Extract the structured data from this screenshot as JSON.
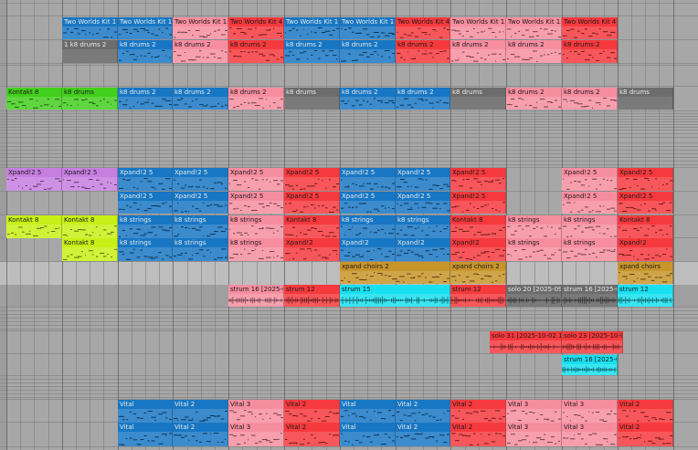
{
  "colors": {
    "blue": "#1877c4",
    "salmon": "#f78ea0",
    "red": "#f6393d",
    "gray": "#6c6c6c",
    "green": "#43cf1d",
    "lime": "#c8f016",
    "purple": "#c67ee0",
    "gold": "#c8952a",
    "cyan": "#17e0f0"
  },
  "clips": [
    {
      "label": "Two Worlds Kit 17",
      "color": "blue",
      "track": "drums-a",
      "lane": 0,
      "start": 1,
      "end": 2,
      "body": "midi"
    },
    {
      "label": "Two Worlds Kit 17",
      "color": "blue",
      "track": "drums-a",
      "lane": 0,
      "start": 2,
      "end": 3,
      "body": "midi"
    },
    {
      "label": "Two Worlds Kit 15",
      "color": "salmon",
      "track": "drums-a",
      "lane": 0,
      "start": 3,
      "end": 4,
      "body": "midi"
    },
    {
      "label": "Two Worlds Kit 4",
      "color": "red",
      "track": "drums-a",
      "lane": 0,
      "start": 4,
      "end": 5,
      "body": "midi"
    },
    {
      "label": "Two Worlds Kit 17",
      "color": "blue",
      "track": "drums-a",
      "lane": 0,
      "start": 5,
      "end": 6,
      "body": "midi"
    },
    {
      "label": "Two Worlds Kit 17",
      "color": "blue",
      "track": "drums-a",
      "lane": 0,
      "start": 6,
      "end": 7,
      "body": "midi"
    },
    {
      "label": "Two Worlds Kit 4",
      "color": "red",
      "track": "drums-a",
      "lane": 0,
      "start": 7,
      "end": 8,
      "body": "midi"
    },
    {
      "label": "Two Worlds Kit 15",
      "color": "salmon",
      "track": "drums-a",
      "lane": 0,
      "start": 8,
      "end": 9,
      "body": "midi"
    },
    {
      "label": "Two Worlds Kit 15",
      "color": "salmon",
      "track": "drums-a",
      "lane": 0,
      "start": 9,
      "end": 10,
      "body": "midi"
    },
    {
      "label": "Two Worlds Kit 4",
      "color": "red",
      "track": "drums-a",
      "lane": 0,
      "start": 10,
      "end": 11,
      "body": "midi"
    },
    {
      "label": "1 k8 drums 2",
      "color": "gray",
      "track": "drums-b",
      "lane": 1,
      "start": 1,
      "end": 2,
      "body": "none"
    },
    {
      "label": "k8 drums 2",
      "color": "blue",
      "track": "drums-b",
      "lane": 1,
      "start": 2,
      "end": 3,
      "body": "midi"
    },
    {
      "label": "k8 drums 2",
      "color": "salmon",
      "track": "drums-b",
      "lane": 1,
      "start": 3,
      "end": 4,
      "body": "midi"
    },
    {
      "label": "k8 drums 2",
      "color": "red",
      "track": "drums-b",
      "lane": 1,
      "start": 4,
      "end": 5,
      "body": "midi"
    },
    {
      "label": "k8 drums 2",
      "color": "blue",
      "track": "drums-b",
      "lane": 1,
      "start": 5,
      "end": 6,
      "body": "midi"
    },
    {
      "label": "k8 drums 2",
      "color": "blue",
      "track": "drums-b",
      "lane": 1,
      "start": 6,
      "end": 7,
      "body": "midi"
    },
    {
      "label": "k8 drums 2",
      "color": "red",
      "track": "drums-b",
      "lane": 1,
      "start": 7,
      "end": 8,
      "body": "midi"
    },
    {
      "label": "k8 drums 2",
      "color": "salmon",
      "track": "drums-b",
      "lane": 1,
      "start": 8,
      "end": 9,
      "body": "midi"
    },
    {
      "label": "k8 drums 2",
      "color": "salmon",
      "track": "drums-b",
      "lane": 1,
      "start": 9,
      "end": 10,
      "body": "midi"
    },
    {
      "label": "k8 drums 2",
      "color": "red",
      "track": "drums-b",
      "lane": 1,
      "start": 10,
      "end": 11,
      "body": "midi"
    },
    {
      "label": "Kontakt 8",
      "color": "green",
      "track": "perc",
      "lane": 2,
      "start": 0,
      "end": 1,
      "body": "midi"
    },
    {
      "label": "k8 drums",
      "color": "green",
      "track": "perc",
      "lane": 2,
      "start": 1,
      "end": 2,
      "body": "midi"
    },
    {
      "label": "k8 drums 2",
      "color": "blue",
      "track": "perc",
      "lane": 2,
      "start": 2,
      "end": 3,
      "body": "midi"
    },
    {
      "label": "k8 drums 2",
      "color": "blue",
      "track": "perc",
      "lane": 2,
      "start": 3,
      "end": 4,
      "body": "midi"
    },
    {
      "label": "k8 drums 2",
      "color": "salmon",
      "track": "perc",
      "lane": 2,
      "start": 4,
      "end": 5,
      "body": "midi"
    },
    {
      "label": "k8 drums",
      "color": "gray",
      "track": "perc",
      "lane": 2,
      "start": 5,
      "end": 6,
      "body": "none"
    },
    {
      "label": "k8 drums 2",
      "color": "blue",
      "track": "perc",
      "lane": 2,
      "start": 6,
      "end": 7,
      "body": "midi"
    },
    {
      "label": "k8 drums 2",
      "color": "blue",
      "track": "perc",
      "lane": 2,
      "start": 7,
      "end": 8,
      "body": "midi"
    },
    {
      "label": "k8 drums",
      "color": "gray",
      "track": "perc",
      "lane": 2,
      "start": 8,
      "end": 9,
      "body": "none"
    },
    {
      "label": "k8 drums 2",
      "color": "salmon",
      "track": "perc",
      "lane": 2,
      "start": 9,
      "end": 10,
      "body": "midi"
    },
    {
      "label": "k8 drums 2",
      "color": "salmon",
      "track": "perc",
      "lane": 2,
      "start": 10,
      "end": 11,
      "body": "midi"
    },
    {
      "label": "k8 drums",
      "color": "gray",
      "track": "perc",
      "lane": 2,
      "start": 11,
      "end": 12,
      "body": "none"
    },
    {
      "label": "Xpand!2 5",
      "color": "purple",
      "track": "xpand-a",
      "lane": 3,
      "start": 0,
      "end": 1,
      "body": "midi"
    },
    {
      "label": "Xpand!2 5",
      "color": "purple",
      "track": "xpand-a",
      "lane": 3,
      "start": 1,
      "end": 2,
      "body": "midi"
    },
    {
      "label": "Xpand!2 5",
      "color": "blue",
      "track": "xpand-a",
      "lane": 3,
      "start": 2,
      "end": 3,
      "body": "midi"
    },
    {
      "label": "Xpand!2 5",
      "color": "blue",
      "track": "xpand-a",
      "lane": 3,
      "start": 3,
      "end": 4,
      "body": "midi"
    },
    {
      "label": "Xpand!2 5",
      "color": "salmon",
      "track": "xpand-a",
      "lane": 3,
      "start": 4,
      "end": 5,
      "body": "midi"
    },
    {
      "label": "Xpand!2 5",
      "color": "red",
      "track": "xpand-a",
      "lane": 3,
      "start": 5,
      "end": 6,
      "body": "midi"
    },
    {
      "label": "Xpand!2 5",
      "color": "blue",
      "track": "xpand-a",
      "lane": 3,
      "start": 6,
      "end": 7,
      "body": "midi"
    },
    {
      "label": "Xpand!2 5",
      "color": "blue",
      "track": "xpand-a",
      "lane": 3,
      "start": 7,
      "end": 8,
      "body": "midi"
    },
    {
      "label": "Xpand!2 5",
      "color": "red",
      "track": "xpand-a",
      "lane": 3,
      "start": 8,
      "end": 9,
      "body": "midi"
    },
    {
      "label": "Xpand!2 5",
      "color": "salmon",
      "track": "xpand-a",
      "lane": 3,
      "start": 10,
      "end": 11,
      "body": "midi"
    },
    {
      "label": "Xpand!2 5",
      "color": "red",
      "track": "xpand-a",
      "lane": 3,
      "start": 11,
      "end": 12,
      "body": "midi"
    },
    {
      "label": "Xpand!2 5",
      "color": "blue",
      "track": "xpand-b",
      "lane": 4,
      "start": 2,
      "end": 3,
      "body": "midi"
    },
    {
      "label": "Xpand!2 5",
      "color": "blue",
      "track": "xpand-b",
      "lane": 4,
      "start": 3,
      "end": 4,
      "body": "midi"
    },
    {
      "label": "Xpand!2 5",
      "color": "salmon",
      "track": "xpand-b",
      "lane": 4,
      "start": 4,
      "end": 5,
      "body": "midi"
    },
    {
      "label": "Xpand!2 5",
      "color": "red",
      "track": "xpand-b",
      "lane": 4,
      "start": 5,
      "end": 6,
      "body": "midi"
    },
    {
      "label": "Xpand!2 5",
      "color": "blue",
      "track": "xpand-b",
      "lane": 4,
      "start": 6,
      "end": 7,
      "body": "midi"
    },
    {
      "label": "Xpand!2 5",
      "color": "blue",
      "track": "xpand-b",
      "lane": 4,
      "start": 7,
      "end": 8,
      "body": "midi"
    },
    {
      "label": "Xpand!2 5",
      "color": "red",
      "track": "xpand-b",
      "lane": 4,
      "start": 8,
      "end": 9,
      "body": "midi"
    },
    {
      "label": "Xpand!2 5",
      "color": "salmon",
      "track": "xpand-b",
      "lane": 4,
      "start": 10,
      "end": 11,
      "body": "midi"
    },
    {
      "label": "Xpand!2 5",
      "color": "red",
      "track": "xpand-b",
      "lane": 4,
      "start": 11,
      "end": 12,
      "body": "midi"
    },
    {
      "label": "Kontakt 8",
      "color": "lime",
      "track": "strings-a",
      "lane": 5,
      "start": 0,
      "end": 1,
      "body": "midi"
    },
    {
      "label": "Kontakt 8",
      "color": "lime",
      "track": "strings-a",
      "lane": 5,
      "start": 1,
      "end": 2,
      "body": "midi"
    },
    {
      "label": "k8 strings",
      "color": "blue",
      "track": "strings-a",
      "lane": 5,
      "start": 2,
      "end": 3,
      "body": "midi"
    },
    {
      "label": "k8 strings",
      "color": "blue",
      "track": "strings-a",
      "lane": 5,
      "start": 3,
      "end": 4,
      "body": "midi"
    },
    {
      "label": "k8 strings",
      "color": "salmon",
      "track": "strings-a",
      "lane": 5,
      "start": 4,
      "end": 5,
      "body": "midi"
    },
    {
      "label": "Kontakt 8",
      "color": "red",
      "track": "strings-a",
      "lane": 5,
      "start": 5,
      "end": 6,
      "body": "midi"
    },
    {
      "label": "k8 strings",
      "color": "blue",
      "track": "strings-a",
      "lane": 5,
      "start": 6,
      "end": 7,
      "body": "midi"
    },
    {
      "label": "k8 strings",
      "color": "blue",
      "track": "strings-a",
      "lane": 5,
      "start": 7,
      "end": 8,
      "body": "midi"
    },
    {
      "label": "Kontakt 8",
      "color": "red",
      "track": "strings-a",
      "lane": 5,
      "start": 8,
      "end": 9,
      "body": "midi"
    },
    {
      "label": "k8 strings",
      "color": "salmon",
      "track": "strings-a",
      "lane": 5,
      "start": 9,
      "end": 10,
      "body": "midi"
    },
    {
      "label": "k8 strings",
      "color": "salmon",
      "track": "strings-a",
      "lane": 5,
      "start": 10,
      "end": 11,
      "body": "midi"
    },
    {
      "label": "Kontakt 8",
      "color": "red",
      "track": "strings-a",
      "lane": 5,
      "start": 11,
      "end": 12,
      "body": "midi"
    },
    {
      "label": "Kontakt 8",
      "color": "lime",
      "track": "strings-b",
      "lane": 6,
      "start": 1,
      "end": 2,
      "body": "midi"
    },
    {
      "label": "k8 strings",
      "color": "blue",
      "track": "strings-b",
      "lane": 6,
      "start": 2,
      "end": 3,
      "body": "midi"
    },
    {
      "label": "k8 strings",
      "color": "blue",
      "track": "strings-b",
      "lane": 6,
      "start": 3,
      "end": 4,
      "body": "midi"
    },
    {
      "label": "k8 strings",
      "color": "salmon",
      "track": "strings-b",
      "lane": 6,
      "start": 4,
      "end": 5,
      "body": "midi"
    },
    {
      "label": "Xpand!2",
      "color": "red",
      "track": "strings-b",
      "lane": 6,
      "start": 5,
      "end": 6,
      "body": "midi"
    },
    {
      "label": "Xpand!2",
      "color": "blue",
      "track": "strings-b",
      "lane": 6,
      "start": 6,
      "end": 7,
      "body": "midi"
    },
    {
      "label": "Xpand!2",
      "color": "blue",
      "track": "strings-b",
      "lane": 6,
      "start": 7,
      "end": 8,
      "body": "midi"
    },
    {
      "label": "Xpand!2",
      "color": "red",
      "track": "strings-b",
      "lane": 6,
      "start": 8,
      "end": 9,
      "body": "midi"
    },
    {
      "label": "k8 strings",
      "color": "salmon",
      "track": "strings-b",
      "lane": 6,
      "start": 9,
      "end": 10,
      "body": "midi"
    },
    {
      "label": "k8 strings",
      "color": "salmon",
      "track": "strings-b",
      "lane": 6,
      "start": 10,
      "end": 11,
      "body": "midi"
    },
    {
      "label": "Xpand!2",
      "color": "red",
      "track": "strings-b",
      "lane": 6,
      "start": 11,
      "end": 12,
      "body": "midi"
    },
    {
      "label": "xpand choirs 2",
      "color": "gold",
      "track": "choirs",
      "lane": 7,
      "start": 6,
      "end": 8,
      "body": "midi"
    },
    {
      "label": "xpand choirs 2",
      "color": "gold",
      "track": "choirs",
      "lane": 7,
      "start": 8,
      "end": 9,
      "body": "midi"
    },
    {
      "label": "xpand choirs",
      "color": "gold",
      "track": "choirs",
      "lane": 7,
      "start": 11,
      "end": 12,
      "body": "midi"
    },
    {
      "label": "strum 16 [2025-09-",
      "color": "salmon",
      "track": "strum",
      "lane": 8,
      "start": 4,
      "end": 5,
      "body": "audio"
    },
    {
      "label": "strum 12",
      "color": "red",
      "track": "strum",
      "lane": 8,
      "start": 5,
      "end": 6,
      "body": "audio"
    },
    {
      "label": "strum 15",
      "color": "cyan",
      "track": "strum",
      "lane": 8,
      "start": 6,
      "end": 8,
      "body": "audio"
    },
    {
      "label": "strum 12",
      "color": "red",
      "track": "strum",
      "lane": 8,
      "start": 8,
      "end": 9,
      "body": "audio"
    },
    {
      "label": "solo 20 [2025-09-",
      "color": "gray",
      "track": "strum",
      "lane": 8,
      "start": 9,
      "end": 10,
      "body": "audio"
    },
    {
      "label": "strum 16 [2025-0",
      "color": "gray",
      "track": "strum",
      "lane": 8,
      "start": 10,
      "end": 11,
      "body": "audio"
    },
    {
      "label": "strum 12",
      "color": "cyan",
      "track": "strum",
      "lane": 8,
      "start": 11,
      "end": 12,
      "body": "audio"
    },
    {
      "label": "solo 31 [2025-10-02 12",
      "color": "red",
      "track": "solo",
      "lane": 9,
      "start": 8.7,
      "end": 10,
      "body": "audio"
    },
    {
      "label": "solo 23 [2025-10-02",
      "color": "red",
      "track": "solo",
      "lane": 9,
      "start": 10,
      "end": 11.1,
      "body": "audio"
    },
    {
      "label": "strum 16 [2025-0",
      "color": "cyan",
      "track": "strum-b",
      "lane": 10,
      "start": 10,
      "end": 11,
      "body": "audio"
    },
    {
      "label": "Vital",
      "color": "blue",
      "track": "vital-a",
      "lane": 11,
      "start": 2,
      "end": 3,
      "body": "midi"
    },
    {
      "label": "Vital 2",
      "color": "blue",
      "track": "vital-a",
      "lane": 11,
      "start": 3,
      "end": 4,
      "body": "midi"
    },
    {
      "label": "Vital 3",
      "color": "salmon",
      "track": "vital-a",
      "lane": 11,
      "start": 4,
      "end": 5,
      "body": "midi"
    },
    {
      "label": "Vital 2",
      "color": "red",
      "track": "vital-a",
      "lane": 11,
      "start": 5,
      "end": 6,
      "body": "midi"
    },
    {
      "label": "Vital",
      "color": "blue",
      "track": "vital-a",
      "lane": 11,
      "start": 6,
      "end": 7,
      "body": "midi"
    },
    {
      "label": "Vital 2",
      "color": "blue",
      "track": "vital-a",
      "lane": 11,
      "start": 7,
      "end": 8,
      "body": "midi"
    },
    {
      "label": "Vital 2",
      "color": "red",
      "track": "vital-a",
      "lane": 11,
      "start": 8,
      "end": 9,
      "body": "midi"
    },
    {
      "label": "Vital 3",
      "color": "salmon",
      "track": "vital-a",
      "lane": 11,
      "start": 9,
      "end": 10,
      "body": "midi"
    },
    {
      "label": "Vital 3",
      "color": "salmon",
      "track": "vital-a",
      "lane": 11,
      "start": 10,
      "end": 11,
      "body": "midi"
    },
    {
      "label": "Vital 2",
      "color": "red",
      "track": "vital-a",
      "lane": 11,
      "start": 11,
      "end": 12,
      "body": "midi"
    },
    {
      "label": "Vital",
      "color": "blue",
      "track": "vital-b",
      "lane": 12,
      "start": 2,
      "end": 3,
      "body": "midi"
    },
    {
      "label": "Vital 2",
      "color": "blue",
      "track": "vital-b",
      "lane": 12,
      "start": 3,
      "end": 4,
      "body": "midi"
    },
    {
      "label": "Vital 3",
      "color": "salmon",
      "track": "vital-b",
      "lane": 12,
      "start": 4,
      "end": 5,
      "body": "midi"
    },
    {
      "label": "Vital 2",
      "color": "red",
      "track": "vital-b",
      "lane": 12,
      "start": 5,
      "end": 6,
      "body": "midi"
    },
    {
      "label": "Vital",
      "color": "blue",
      "track": "vital-b",
      "lane": 12,
      "start": 6,
      "end": 7,
      "body": "midi"
    },
    {
      "label": "Vital 2",
      "color": "blue",
      "track": "vital-b",
      "lane": 12,
      "start": 7,
      "end": 8,
      "body": "midi"
    },
    {
      "label": "Vital 2",
      "color": "red",
      "track": "vital-b",
      "lane": 12,
      "start": 8,
      "end": 9,
      "body": "midi"
    },
    {
      "label": "Vital 3",
      "color": "salmon",
      "track": "vital-b",
      "lane": 12,
      "start": 9,
      "end": 10,
      "body": "midi"
    },
    {
      "label": "Vital 3",
      "color": "salmon",
      "track": "vital-b",
      "lane": 12,
      "start": 10,
      "end": 11,
      "body": "midi"
    },
    {
      "label": "Vital 2",
      "color": "red",
      "track": "vital-b",
      "lane": 12,
      "start": 11,
      "end": 12,
      "body": "midi"
    }
  ]
}
